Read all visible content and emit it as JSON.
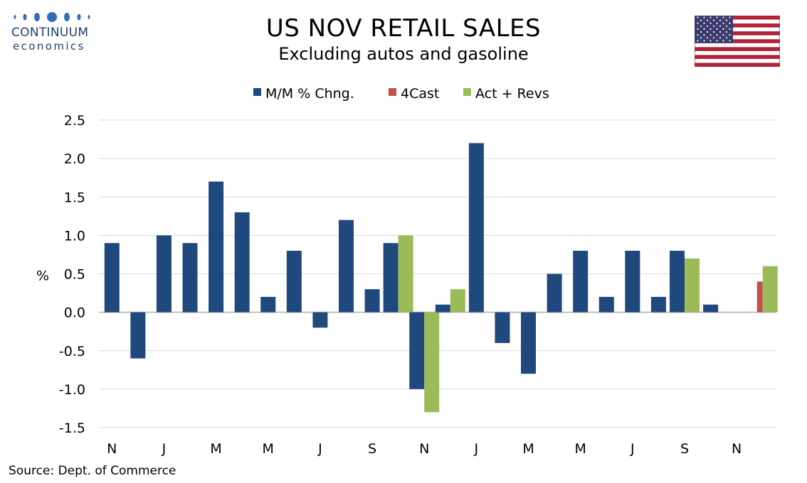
{
  "logo": {
    "brand": "CONTINUUM",
    "brand_sub": "economics",
    "dot_color": "#2f6eb5"
  },
  "header": {
    "title": "US NOV RETAIL SALES",
    "subtitle": "Excluding autos and gasoline"
  },
  "flag_icon": "us-flag-icon",
  "source": "Source: Dept. of Commerce",
  "chart_data": {
    "type": "bar",
    "ylabel": "%",
    "ylim": [
      -1.5,
      2.5
    ],
    "yticks": [
      "2.5",
      "2.0",
      "1.5",
      "1.0",
      "0.5",
      "0.0",
      "-0.5",
      "-1.0",
      "-1.5"
    ],
    "x_tick_labels": [
      "N",
      "J",
      "M",
      "M",
      "J",
      "S",
      "N",
      "J",
      "M",
      "M",
      "J",
      "S",
      "N"
    ],
    "grid": true,
    "legend_position": "top-center",
    "periods": 26,
    "series": [
      {
        "name": "M/M % Chng.",
        "color": "#1f497d",
        "values": [
          0.9,
          -0.6,
          1.0,
          0.9,
          1.7,
          1.3,
          0.2,
          0.8,
          -0.2,
          1.2,
          0.3,
          0.9,
          -1.0,
          0.1,
          2.2,
          -0.4,
          -0.8,
          0.5,
          0.8,
          0.2,
          0.8,
          0.2,
          0.8,
          0.1,
          null,
          null
        ]
      },
      {
        "name": "4Cast",
        "color": "#c0504d",
        "values": [
          null,
          null,
          null,
          null,
          null,
          null,
          null,
          null,
          null,
          null,
          null,
          null,
          null,
          null,
          null,
          null,
          null,
          null,
          null,
          null,
          null,
          null,
          null,
          null,
          null,
          0.4
        ]
      },
      {
        "name": "Act + Revs",
        "color": "#9bbb59",
        "values": [
          null,
          null,
          null,
          null,
          null,
          null,
          null,
          null,
          null,
          null,
          null,
          1.0,
          -1.3,
          0.3,
          null,
          null,
          null,
          null,
          null,
          null,
          null,
          null,
          0.7,
          null,
          null,
          0.6
        ]
      }
    ]
  }
}
